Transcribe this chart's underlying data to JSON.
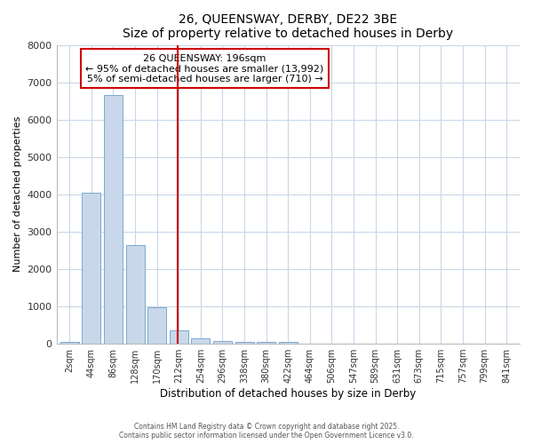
{
  "title": "26, QUEENSWAY, DERBY, DE22 3BE",
  "subtitle": "Size of property relative to detached houses in Derby",
  "xlabel": "Distribution of detached houses by size in Derby",
  "ylabel": "Number of detached properties",
  "bar_labels": [
    "2sqm",
    "44sqm",
    "86sqm",
    "128sqm",
    "170sqm",
    "212sqm",
    "254sqm",
    "296sqm",
    "338sqm",
    "380sqm",
    "422sqm",
    "464sqm",
    "506sqm",
    "547sqm",
    "589sqm",
    "631sqm",
    "673sqm",
    "715sqm",
    "757sqm",
    "799sqm",
    "841sqm"
  ],
  "bar_values": [
    50,
    4050,
    6650,
    2650,
    975,
    350,
    140,
    70,
    50,
    50,
    50,
    0,
    0,
    0,
    0,
    0,
    0,
    0,
    0,
    0,
    0
  ],
  "bar_color": "#c8d8ea",
  "bar_edge_color": "#7aa8d0",
  "grid_color": "#c8d8ea",
  "background_color": "#ffffff",
  "vline_x": 4.95,
  "vline_color": "#cc0000",
  "annotation_text": "26 QUEENSWAY: 196sqm\n← 95% of detached houses are smaller (13,992)\n5% of semi-detached houses are larger (710) →",
  "annotation_box_color": "#cc0000",
  "ylim": [
    0,
    8000
  ],
  "yticks": [
    0,
    1000,
    2000,
    3000,
    4000,
    5000,
    6000,
    7000,
    8000
  ],
  "footnote1": "Contains HM Land Registry data © Crown copyright and database right 2025.",
  "footnote2": "Contains public sector information licensed under the Open Government Licence v3.0."
}
